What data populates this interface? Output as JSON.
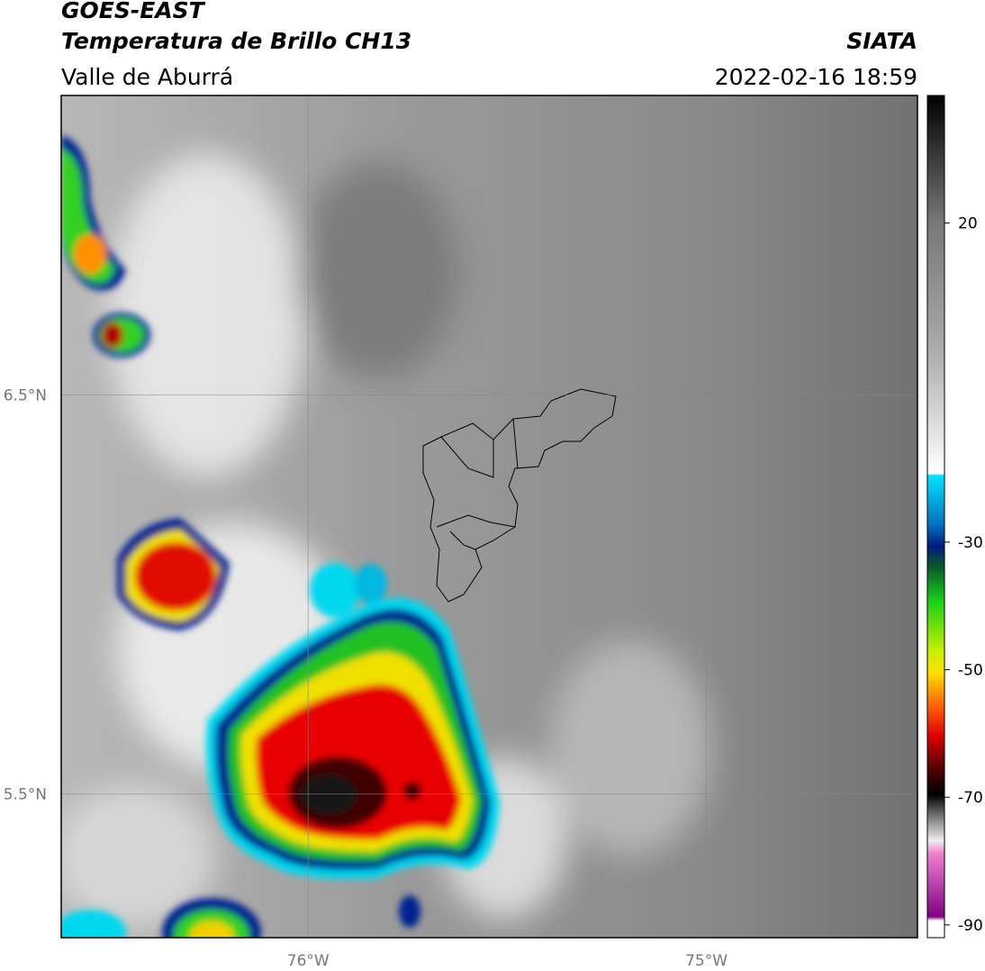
{
  "header": {
    "title": "GOES-EAST",
    "subtitle": "Temperatura de Brillo CH13",
    "region": "Valle de Aburrá",
    "source": "SIATA",
    "datetime": "2022-02-16 18:59"
  },
  "map": {
    "xlim": [
      -76.62,
      -74.47
    ],
    "ylim": [
      5.14,
      7.25
    ],
    "xticks": [
      {
        "value": -76,
        "label": "76°W"
      },
      {
        "value": -75,
        "label": "75°W"
      }
    ],
    "yticks": [
      {
        "value": 6.5,
        "label": "6.5°N"
      },
      {
        "value": 5.5,
        "label": "5.5°N"
      }
    ],
    "grid": true
  },
  "colorbar": {
    "lim": [
      -92,
      40
    ],
    "ticks": [
      20,
      -30,
      -50,
      -70,
      -90
    ]
  }
}
